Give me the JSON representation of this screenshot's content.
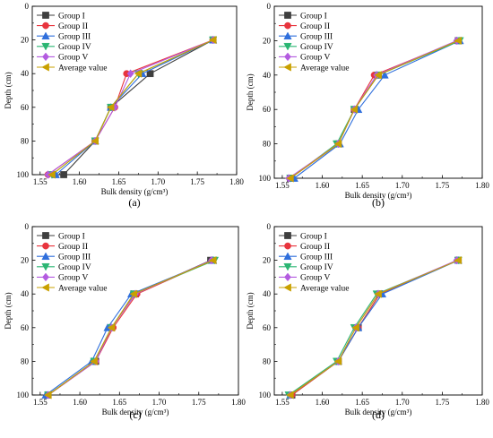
{
  "legend_position": "top-left",
  "series_styles": [
    {
      "color": "#3f3f3f",
      "marker": "square"
    },
    {
      "color": "#e8343d",
      "marker": "circle"
    },
    {
      "color": "#2f6fdc",
      "marker": "triangle-up"
    },
    {
      "color": "#2bb673",
      "marker": "triangle-down"
    },
    {
      "color": "#b35be0",
      "marker": "diamond"
    },
    {
      "color": "#c9a000",
      "marker": "triangle-left"
    }
  ],
  "chart_data": [
    {
      "type": "line",
      "panel_label": "(a)",
      "xlabel": "Bulk density (g/cm³)",
      "ylabel": "Depth (cm)",
      "xlim": [
        1.54,
        1.8
      ],
      "ylim": [
        0,
        100
      ],
      "y_inverted": true,
      "xticks": [
        "1.55",
        "1.60",
        "1.65",
        "1.70",
        "1.75",
        "1.80"
      ],
      "yticks": [
        "0",
        "20",
        "40",
        "60",
        "80",
        "100"
      ],
      "series": [
        {
          "name": "Group I",
          "x": [
            1.77,
            1.69,
            1.64,
            1.62,
            1.58
          ],
          "y": [
            20,
            40,
            60,
            80,
            100
          ]
        },
        {
          "name": "Group II",
          "x": [
            1.77,
            1.66,
            1.645,
            1.62,
            1.56
          ],
          "y": [
            20,
            40,
            60,
            80,
            100
          ]
        },
        {
          "name": "Group III",
          "x": [
            1.77,
            1.68,
            1.64,
            1.62,
            1.57
          ],
          "y": [
            20,
            40,
            60,
            80,
            100
          ]
        },
        {
          "name": "Group IV",
          "x": [
            1.77,
            1.675,
            1.64,
            1.62,
            1.565
          ],
          "y": [
            20,
            40,
            60,
            80,
            100
          ]
        },
        {
          "name": "Group V",
          "x": [
            1.77,
            1.665,
            1.645,
            1.62,
            1.56
          ],
          "y": [
            20,
            40,
            60,
            80,
            100
          ]
        },
        {
          "name": "Average value",
          "x": [
            1.77,
            1.675,
            1.64,
            1.62,
            1.565
          ],
          "y": [
            20,
            40,
            60,
            80,
            100
          ]
        }
      ]
    },
    {
      "type": "line",
      "panel_label": "(b)",
      "xlabel": "Bulk density (g/cm³)",
      "ylabel": "Depth (cm)",
      "xlim": [
        1.54,
        1.8
      ],
      "ylim": [
        0,
        100
      ],
      "y_inverted": true,
      "xticks": [
        "1.55",
        "1.60",
        "1.65",
        "1.70",
        "1.75",
        "1.80"
      ],
      "yticks": [
        "0",
        "20",
        "40",
        "60",
        "80",
        "100"
      ],
      "series": [
        {
          "name": "Group I",
          "x": [
            1.77,
            1.67,
            1.64,
            1.62,
            1.56
          ],
          "y": [
            20,
            40,
            60,
            80,
            100
          ]
        },
        {
          "name": "Group II",
          "x": [
            1.77,
            1.665,
            1.64,
            1.62,
            1.56
          ],
          "y": [
            20,
            40,
            60,
            80,
            100
          ]
        },
        {
          "name": "Group III",
          "x": [
            1.772,
            1.678,
            1.645,
            1.622,
            1.565
          ],
          "y": [
            20,
            40,
            60,
            80,
            100
          ]
        },
        {
          "name": "Group IV",
          "x": [
            1.772,
            1.67,
            1.64,
            1.618,
            1.56
          ],
          "y": [
            20,
            40,
            60,
            80,
            100
          ]
        },
        {
          "name": "Group V",
          "x": [
            1.768,
            1.668,
            1.64,
            1.62,
            1.558
          ],
          "y": [
            20,
            40,
            60,
            80,
            100
          ]
        },
        {
          "name": "Average value",
          "x": [
            1.77,
            1.67,
            1.64,
            1.62,
            1.56
          ],
          "y": [
            20,
            40,
            60,
            80,
            100
          ]
        }
      ]
    },
    {
      "type": "line",
      "panel_label": "(c)",
      "xlabel": "Bulk density (g/cm³)",
      "ylabel": "Depth (cm)",
      "xlim": [
        1.54,
        1.8
      ],
      "ylim": [
        0,
        100
      ],
      "y_inverted": true,
      "xticks": [
        "1.55",
        "1.60",
        "1.65",
        "1.70",
        "1.75",
        "1.80"
      ],
      "yticks": [
        "0",
        "20",
        "40",
        "60",
        "80",
        "100"
      ],
      "series": [
        {
          "name": "Group I",
          "x": [
            1.765,
            1.67,
            1.64,
            1.62,
            1.56
          ],
          "y": [
            20,
            40,
            60,
            80,
            100
          ]
        },
        {
          "name": "Group II",
          "x": [
            1.767,
            1.672,
            1.642,
            1.62,
            1.56
          ],
          "y": [
            20,
            40,
            60,
            80,
            100
          ]
        },
        {
          "name": "Group III",
          "x": [
            1.768,
            1.665,
            1.635,
            1.615,
            1.557
          ],
          "y": [
            20,
            40,
            60,
            80,
            100
          ]
        },
        {
          "name": "Group IV",
          "x": [
            1.77,
            1.668,
            1.64,
            1.618,
            1.56
          ],
          "y": [
            20,
            40,
            60,
            80,
            100
          ]
        },
        {
          "name": "Group V",
          "x": [
            1.766,
            1.67,
            1.64,
            1.62,
            1.56
          ],
          "y": [
            20,
            40,
            60,
            80,
            100
          ]
        },
        {
          "name": "Average value",
          "x": [
            1.768,
            1.668,
            1.64,
            1.618,
            1.56
          ],
          "y": [
            20,
            40,
            60,
            80,
            100
          ]
        }
      ]
    },
    {
      "type": "line",
      "panel_label": "(d)",
      "xlabel": "Bulk density (g/cm³)",
      "ylabel": "Depth (cm)",
      "xlim": [
        1.54,
        1.8
      ],
      "ylim": [
        0,
        100
      ],
      "y_inverted": true,
      "xticks": [
        "1.55",
        "1.60",
        "1.65",
        "1.70",
        "1.75",
        "1.80"
      ],
      "yticks": [
        "0",
        "20",
        "40",
        "60",
        "80",
        "100"
      ],
      "series": [
        {
          "name": "Group I",
          "x": [
            1.77,
            1.672,
            1.645,
            1.62,
            1.562
          ],
          "y": [
            20,
            40,
            60,
            80,
            100
          ]
        },
        {
          "name": "Group II",
          "x": [
            1.77,
            1.672,
            1.645,
            1.62,
            1.562
          ],
          "y": [
            20,
            40,
            60,
            80,
            100
          ]
        },
        {
          "name": "Group III",
          "x": [
            1.77,
            1.675,
            1.645,
            1.62,
            1.56
          ],
          "y": [
            20,
            40,
            60,
            80,
            100
          ]
        },
        {
          "name": "Group IV",
          "x": [
            1.77,
            1.668,
            1.64,
            1.618,
            1.558
          ],
          "y": [
            20,
            40,
            60,
            80,
            100
          ]
        },
        {
          "name": "Group V",
          "x": [
            1.768,
            1.67,
            1.642,
            1.62,
            1.56
          ],
          "y": [
            20,
            40,
            60,
            80,
            100
          ]
        },
        {
          "name": "Average value",
          "x": [
            1.77,
            1.67,
            1.642,
            1.62,
            1.56
          ],
          "y": [
            20,
            40,
            60,
            80,
            100
          ]
        }
      ]
    }
  ]
}
